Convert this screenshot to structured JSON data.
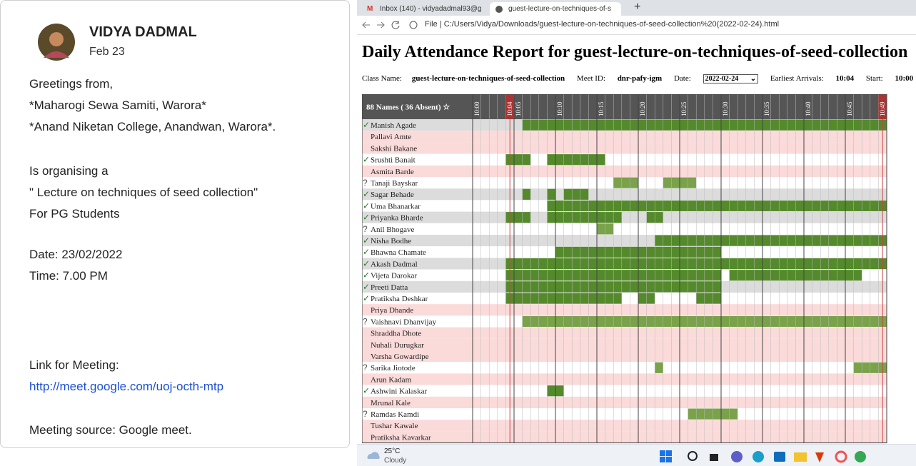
{
  "message": {
    "sender": "VIDYA DADMAL",
    "date": "Feb 23",
    "lines": [
      "Greetings from,",
      "*Maharogi Sewa Samiti, Warora*",
      "*Anand Niketan College, Anandwan, Warora*.",
      "Is organising a",
      "\" Lecture on techniques of seed collection\"",
      "For PG Students",
      "Date: 23/02/2022",
      "Time: 7.00 PM",
      "Link for Meeting:",
      "Meeting source: Google meet."
    ],
    "link": "http://meet.google.com/uoj-octh-mtp"
  },
  "browser": {
    "tabs": [
      "Inbox (140) - vidyadadmal93@g",
      "guest-lecture-on-techniques-of-s"
    ],
    "new_tab": "+",
    "address_prefix": "File",
    "url": "C:/Users/Vidya/Downloads/guest-lecture-on-techniques-of-seed-collection%20(2022-02-24).html"
  },
  "report": {
    "title": "Daily Attendance Report for guest-lecture-on-techniques-of-seed-collection",
    "class_label": "Class Name:",
    "class_name": "guest-lecture-on-techniques-of-seed-collection",
    "meet_label": "Meet ID:",
    "meet_id": "dnr-pafy-igm",
    "date_label": "Date:",
    "date": "2022-02-24",
    "arrivals_label": "Earliest Arrivals:",
    "arrivals": "10:04",
    "start_label": "Start:",
    "start": "10:00",
    "header": "88 Names ( 36 Absent) ☆",
    "times": [
      "10:00",
      "10:04",
      "10:05",
      "10:10",
      "10:15",
      "10:20",
      "10:25",
      "10:30",
      "10:35",
      "10:40",
      "10:45",
      "10:49"
    ],
    "rows": [
      {
        "name": "Manish Agade",
        "status": "✓",
        "present": [
          [
            6,
            50
          ]
        ]
      },
      {
        "name": "Pallavi Amte"
      },
      {
        "name": "Sakshi Bakane"
      },
      {
        "name": "Srushti Banait",
        "status": "✓",
        "present": [
          [
            4,
            7
          ],
          [
            9,
            16
          ]
        ]
      },
      {
        "name": "Asmita Barde"
      },
      {
        "name": "Tanaji Bayskar",
        "status": "?",
        "present": [
          [
            17,
            20
          ],
          [
            23,
            27
          ]
        ]
      },
      {
        "name": "Sagar Behade",
        "status": "✓",
        "present": [
          [
            6,
            7
          ],
          [
            9,
            10
          ],
          [
            11,
            14
          ]
        ]
      },
      {
        "name": "Uma Bhanarkar",
        "status": "✓",
        "present": [
          [
            9,
            50
          ]
        ]
      },
      {
        "name": "Priyanka Bharde",
        "status": "✓",
        "present": [
          [
            4,
            7
          ],
          [
            9,
            18
          ],
          [
            21,
            23
          ]
        ]
      },
      {
        "name": "Anil Bhogave",
        "status": "?",
        "present": [
          [
            15,
            17
          ]
        ]
      },
      {
        "name": "Nisha Bodhe",
        "status": "✓",
        "present": [
          [
            22,
            50
          ]
        ]
      },
      {
        "name": "Bhawna Chamate",
        "status": "✓",
        "present": [
          [
            10,
            30
          ]
        ]
      },
      {
        "name": "Akash Dadmal",
        "status": "✓",
        "present": [
          [
            4,
            50
          ]
        ]
      },
      {
        "name": "Vijeta Darokar",
        "status": "✓",
        "present": [
          [
            4,
            30
          ],
          [
            31,
            47
          ]
        ]
      },
      {
        "name": "Preeti Datta",
        "status": "✓",
        "present": [
          [
            4,
            30
          ]
        ]
      },
      {
        "name": "Pratiksha Deshkar",
        "status": "✓",
        "present": [
          [
            4,
            18
          ],
          [
            20,
            22
          ],
          [
            27,
            30
          ]
        ]
      },
      {
        "name": "Priya Dhande"
      },
      {
        "name": "Vaishnavi Dhanvijay",
        "status": "?",
        "present": [
          [
            6,
            50
          ]
        ]
      },
      {
        "name": "Shraddha Dhote"
      },
      {
        "name": "Nuhali Durugkar"
      },
      {
        "name": "Varsha Gowardipe"
      },
      {
        "name": "Sarika Jiotode",
        "status": "?",
        "present": [
          [
            22,
            23
          ],
          [
            46,
            50
          ]
        ]
      },
      {
        "name": "Arun Kadam"
      },
      {
        "name": "Ashwini Kalaskar",
        "status": "✓",
        "present": [
          [
            9,
            11
          ]
        ]
      },
      {
        "name": "Mrunal Kale"
      },
      {
        "name": "Ramdas Kamdi",
        "status": "?",
        "present": [
          [
            26,
            32
          ]
        ]
      },
      {
        "name": "Tushar Kawale"
      },
      {
        "name": "Pratiksha Kavarkar"
      }
    ]
  },
  "taskbar": {
    "temperature": "25°C",
    "weather": "Cloudy"
  }
}
